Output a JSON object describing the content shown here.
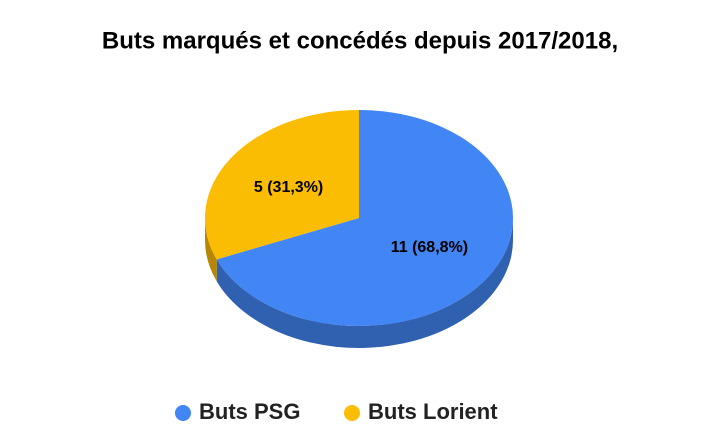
{
  "chart_data": {
    "type": "pie",
    "title": "Buts marqués et concédés depuis 2017/2018,",
    "categories": [
      "Buts PSG",
      "Buts Lorient"
    ],
    "values": [
      11,
      5
    ],
    "value_labels": [
      "11 (68,8%)",
      "5 (31,3%)"
    ],
    "colors": [
      "#4285f4",
      "#fbbc04"
    ],
    "legend": "bottom"
  }
}
